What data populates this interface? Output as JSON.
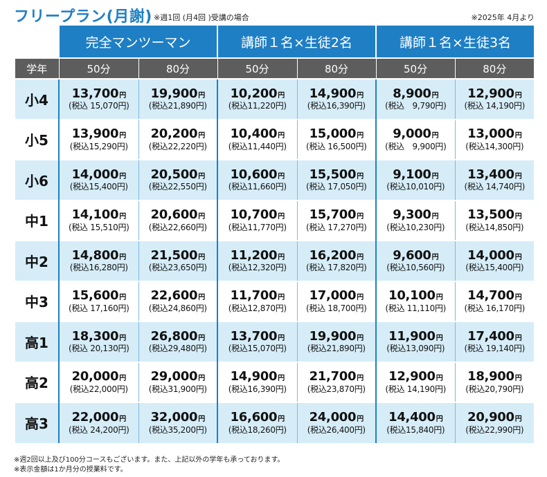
{
  "title": "フリープラン(月謝)",
  "subtitle": "※週1回 (月4回 )受講の場合",
  "date_note": "※2025年 4月より",
  "plans": [
    "完全マンツーマン",
    "講師１名×生徒2名",
    "講師１名×生徒3名"
  ],
  "grade_header": "学年",
  "durations": [
    "50分",
    "80分",
    "50分",
    "80分",
    "50分",
    "80分"
  ],
  "yen": "円",
  "rows": [
    {
      "grade": "小4",
      "cells": [
        {
          "price": "13,700",
          "tax": "(税込 15,070円)"
        },
        {
          "price": "19,900",
          "tax": "(税込21,890円)"
        },
        {
          "price": "10,200",
          "tax": "(税込11,220円)"
        },
        {
          "price": "14,900",
          "tax": "(税込16,390円)"
        },
        {
          "price": "8,900",
          "tax": "(税込　9,790円)"
        },
        {
          "price": "12,900",
          "tax": "(税込 14,190円)"
        }
      ]
    },
    {
      "grade": "小5",
      "cells": [
        {
          "price": "13,900",
          "tax": "(税込15,290円)"
        },
        {
          "price": "20,200",
          "tax": "(税込22,220円)"
        },
        {
          "price": "10,400",
          "tax": "(税込11,440円)"
        },
        {
          "price": "15,000",
          "tax": "(税込 16,500円)"
        },
        {
          "price": "9,000",
          "tax": "(税込　9,900円)"
        },
        {
          "price": "13,000",
          "tax": "(税込14,300円)"
        }
      ]
    },
    {
      "grade": "小6",
      "cells": [
        {
          "price": "14,000",
          "tax": "(税込15,400円)"
        },
        {
          "price": "20,500",
          "tax": "(税込22,550円)"
        },
        {
          "price": "10,600",
          "tax": "(税込11,660円)"
        },
        {
          "price": "15,500",
          "tax": "(税込 17,050円)"
        },
        {
          "price": "9,100",
          "tax": "(税込10,010円)"
        },
        {
          "price": "13,400",
          "tax": "(税込 14,740円)"
        }
      ]
    },
    {
      "grade": "中1",
      "cells": [
        {
          "price": "14,100",
          "tax": "(税込 15,510円)"
        },
        {
          "price": "20,600",
          "tax": "(税込22,660円)"
        },
        {
          "price": "10,700",
          "tax": "(税込11,770円)"
        },
        {
          "price": "15,700",
          "tax": "(税込 17,270円)"
        },
        {
          "price": "9,300",
          "tax": "(税込10,230円)"
        },
        {
          "price": "13,500",
          "tax": "(税込14,850円)"
        }
      ]
    },
    {
      "grade": "中2",
      "cells": [
        {
          "price": "14,800",
          "tax": "(税込16,280円)"
        },
        {
          "price": "21,500",
          "tax": "(税込23,650円)"
        },
        {
          "price": "11,200",
          "tax": "(税込12,320円)"
        },
        {
          "price": "16,200",
          "tax": "(税込 17,820円)"
        },
        {
          "price": "9,600",
          "tax": "(税込10,560円)"
        },
        {
          "price": "14,000",
          "tax": "(税込15,400円)"
        }
      ]
    },
    {
      "grade": "中3",
      "cells": [
        {
          "price": "15,600",
          "tax": "(税込 17,160円)"
        },
        {
          "price": "22,600",
          "tax": "(税込24,860円)"
        },
        {
          "price": "11,700",
          "tax": "(税込12,870円)"
        },
        {
          "price": "17,000",
          "tax": "(税込 18,700円)"
        },
        {
          "price": "10,100",
          "tax": "(税込 11,110円)"
        },
        {
          "price": "14,700",
          "tax": "(税込 16,170円)"
        }
      ]
    },
    {
      "grade": "高1",
      "cells": [
        {
          "price": "18,300",
          "tax": "(税込 20,130円)"
        },
        {
          "price": "26,800",
          "tax": "(税込29,480円)"
        },
        {
          "price": "13,700",
          "tax": "(税込15,070円)"
        },
        {
          "price": "19,900",
          "tax": "(税込21,890円)"
        },
        {
          "price": "11,900",
          "tax": "(税込13,090円)"
        },
        {
          "price": "17,400",
          "tax": "(税込 19,140円)"
        }
      ]
    },
    {
      "grade": "高2",
      "cells": [
        {
          "price": "20,000",
          "tax": "(税込22,000円)"
        },
        {
          "price": "29,000",
          "tax": "(税込31,900円)"
        },
        {
          "price": "14,900",
          "tax": "(税込16,390円)"
        },
        {
          "price": "21,700",
          "tax": "(税込23,870円)"
        },
        {
          "price": "12,900",
          "tax": "(税込 14,190円)"
        },
        {
          "price": "18,900",
          "tax": "(税込20,790円)"
        }
      ]
    },
    {
      "grade": "高3",
      "cells": [
        {
          "price": "22,000",
          "tax": "(税込 24,200円)"
        },
        {
          "price": "32,000",
          "tax": "(税込35,200円)"
        },
        {
          "price": "16,600",
          "tax": "(税込18,260円)"
        },
        {
          "price": "24,000",
          "tax": "(税込26,400円)"
        },
        {
          "price": "14,400",
          "tax": "(税込15,840円)"
        },
        {
          "price": "20,900",
          "tax": "(税込22,990円)"
        }
      ]
    }
  ],
  "footnotes": [
    "※週2回以上及び100分コースもございます。また、上記以外の学年も承っております。",
    "※表示金額は1か月分の授業料です。"
  ],
  "colors": {
    "accent": "#1f7fc4",
    "row_alt": "#d6edf8",
    "duration_header": "#5d5d5d"
  }
}
